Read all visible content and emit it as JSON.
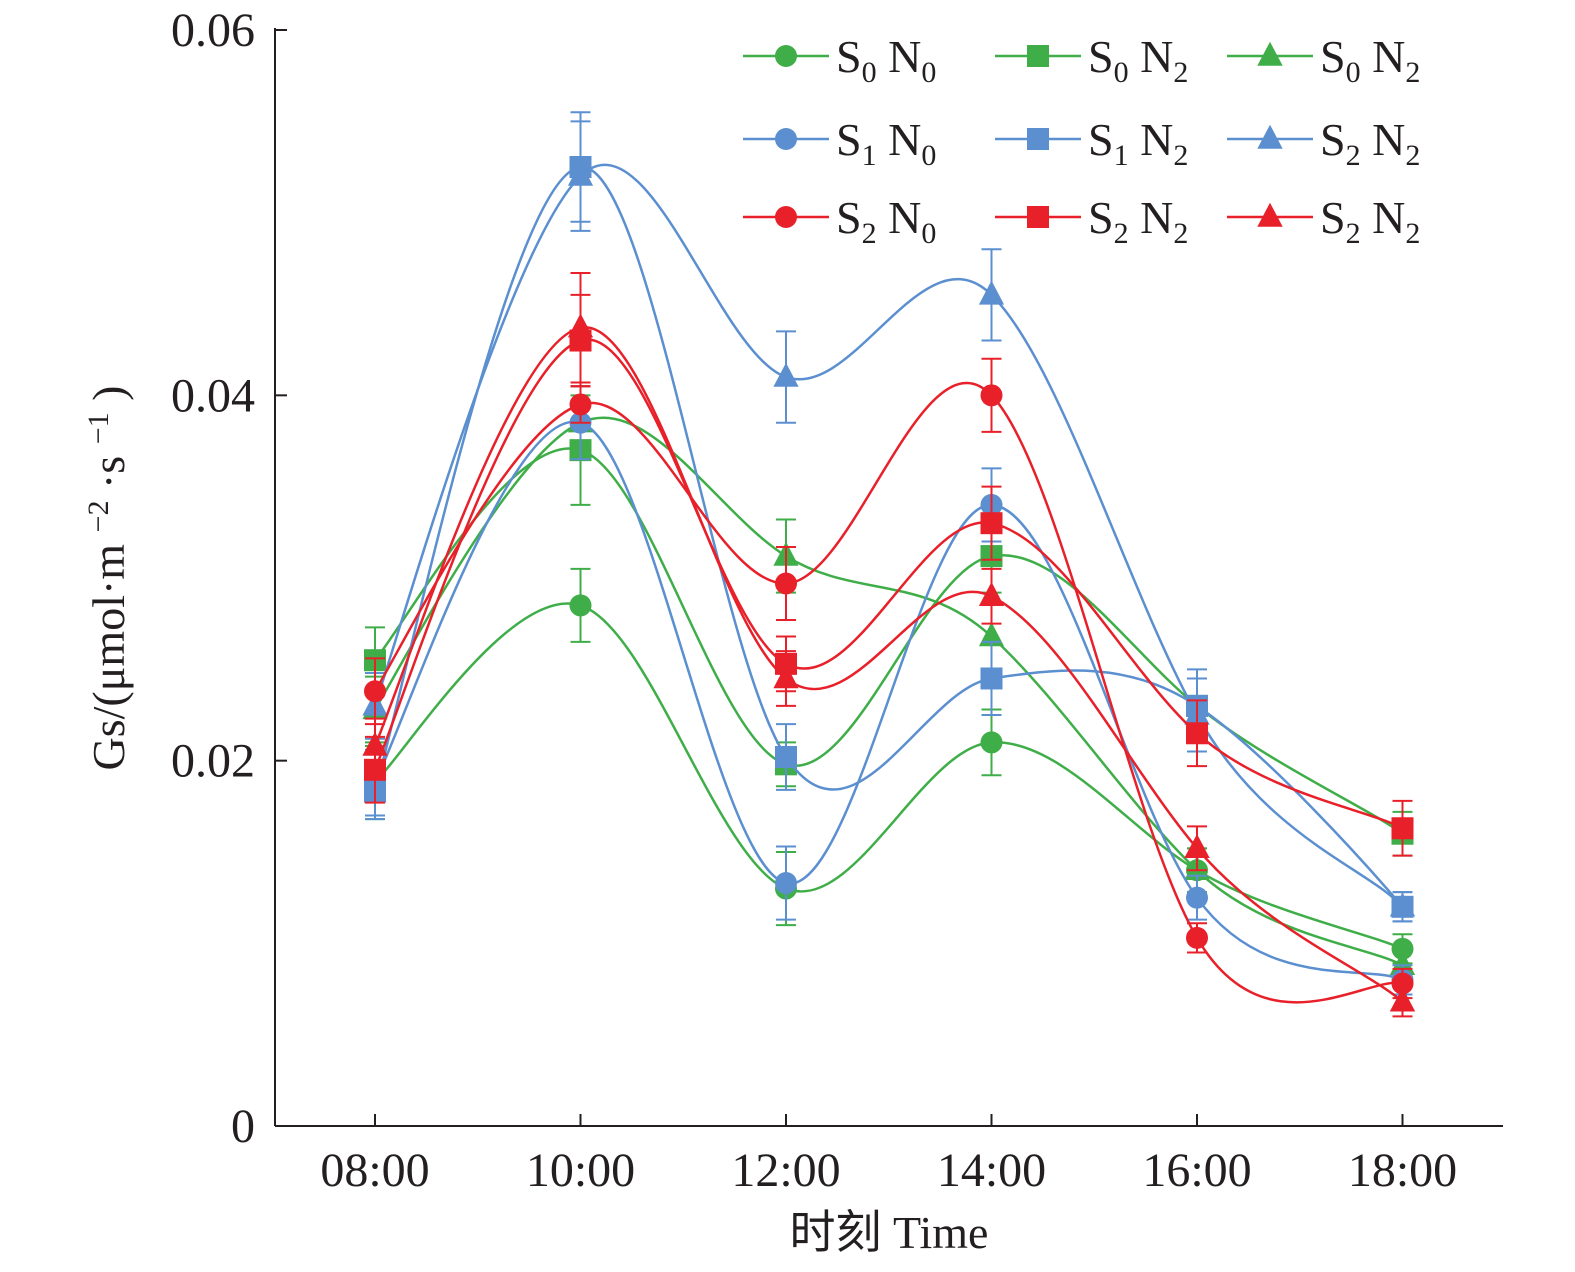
{
  "chart_data": {
    "type": "line",
    "x": [
      "08:00",
      "10:00",
      "12:00",
      "14:00",
      "16:00",
      "18:00"
    ],
    "xlabel": "时刻 Time",
    "ylabel": {
      "prefix": "Gs/(μmol·m",
      "exp1": "−2",
      "mid": "·s",
      "exp2": "−1",
      "suffix": ")"
    },
    "ylim": [
      0,
      0.06
    ],
    "yticks": [
      {
        "value": 0,
        "label": "0"
      },
      {
        "value": 0.02,
        "label": "0.02"
      },
      {
        "value": 0.04,
        "label": "0.04"
      },
      {
        "value": 0.06,
        "label": "0.06"
      }
    ],
    "grid": false,
    "legend_position": "top-right",
    "colors": {
      "S0": "#3fae49",
      "S1": "#5b8fd0",
      "S2": "#e8202a",
      "axis": "#231f20",
      "error": "#555555"
    },
    "series": [
      {
        "name": "S0 N0",
        "s": "0",
        "n": "0",
        "color": "#3fae49",
        "marker": "circle",
        "values": [
          0.0188,
          0.0285,
          0.013,
          0.021,
          0.014,
          0.0097
        ],
        "errors": [
          0.002,
          0.002,
          0.002,
          0.0018,
          0.0012,
          0.0008
        ]
      },
      {
        "name": "S0 N2",
        "s": "0",
        "n": "2",
        "color": "#3fae49",
        "marker": "square",
        "values": [
          0.0255,
          0.037,
          0.0198,
          0.0312,
          0.023,
          0.016
        ],
        "errors": [
          0.0018,
          0.003,
          0.0012,
          0.002,
          0.0015,
          0.0012
        ]
      },
      {
        "name": "S0 N2",
        "s": "0",
        "n": "2",
        "color": "#3fae49",
        "marker": "triangle",
        "values": [
          0.0228,
          0.0385,
          0.0312,
          0.0268,
          0.014,
          0.0088
        ],
        "errors": [
          0.0018,
          0.002,
          0.002,
          0.0018,
          0.0012,
          0.0008
        ]
      },
      {
        "name": "S1 N0",
        "s": "1",
        "n": "0",
        "color": "#5b8fd0",
        "marker": "circle",
        "values": [
          0.0188,
          0.0385,
          0.0133,
          0.034,
          0.0125,
          0.008
        ],
        "errors": [
          0.0018,
          0.002,
          0.002,
          0.002,
          0.0012,
          0.0008
        ]
      },
      {
        "name": "S1 N2",
        "s": "1",
        "n": "2",
        "color": "#5b8fd0",
        "marker": "square",
        "values": [
          0.0183,
          0.0525,
          0.0202,
          0.0245,
          0.023,
          0.012
        ],
        "errors": [
          0.0015,
          0.003,
          0.0018,
          0.002,
          0.002,
          0.0008
        ]
      },
      {
        "name": "S2 N2",
        "s": "2",
        "n": "2",
        "color": "#5b8fd0",
        "marker": "triangle",
        "values": [
          0.023,
          0.052,
          0.041,
          0.0455,
          0.0225,
          0.012
        ],
        "errors": [
          0.0018,
          0.003,
          0.0025,
          0.0025,
          0.002,
          0.0008
        ]
      },
      {
        "name": "S2 N0",
        "s": "2",
        "n": "0",
        "color": "#e8202a",
        "marker": "circle",
        "values": [
          0.0238,
          0.0395,
          0.0297,
          0.04,
          0.0103,
          0.0078
        ],
        "errors": [
          0.0018,
          0.001,
          0.002,
          0.002,
          0.0008,
          0.0008
        ]
      },
      {
        "name": "S2 N2",
        "s": "2",
        "n": "2",
        "color": "#e8202a",
        "marker": "square",
        "values": [
          0.0195,
          0.043,
          0.0253,
          0.033,
          0.0215,
          0.0163
        ],
        "errors": [
          0.0018,
          0.0025,
          0.0015,
          0.002,
          0.0018,
          0.0015
        ]
      },
      {
        "name": "S2 N2",
        "s": "2",
        "n": "2",
        "color": "#e8202a",
        "marker": "triangle",
        "values": [
          0.0208,
          0.0437,
          0.0245,
          0.029,
          0.0152,
          0.0068
        ],
        "errors": [
          0.0015,
          0.003,
          0.0015,
          0.0015,
          0.0012,
          0.0008
        ]
      }
    ]
  }
}
